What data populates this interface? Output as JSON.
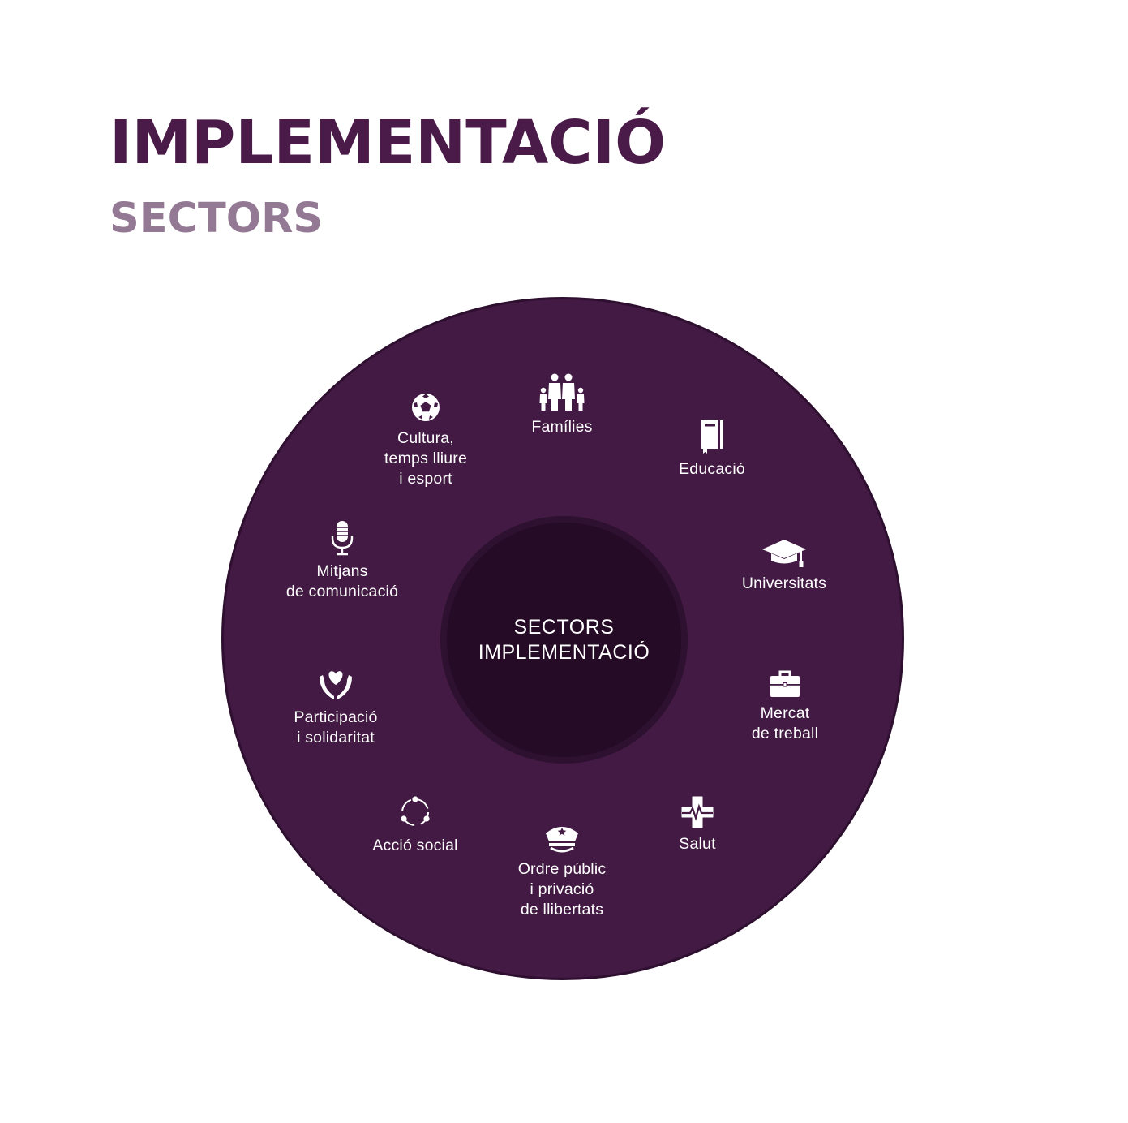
{
  "header": {
    "title": "IMPLEMENTACIÓ",
    "subtitle": "SECTORS"
  },
  "diagram": {
    "center": {
      "line1": "SECTORS",
      "line2": "IMPLEMENTACIÓ"
    },
    "sectors": [
      {
        "label": "Famílies",
        "icon": "family-icon"
      },
      {
        "label": "Educació",
        "icon": "notebook-icon"
      },
      {
        "label": "Universitats",
        "icon": "graduation-cap-icon"
      },
      {
        "label": "Mercat\nde treball",
        "icon": "briefcase-icon"
      },
      {
        "label": "Salut",
        "icon": "health-cross-icon"
      },
      {
        "label": "Ordre públic\ni privació\nde llibertats",
        "icon": "police-cap-icon"
      },
      {
        "label": "Acció social",
        "icon": "cycle-arrows-icon"
      },
      {
        "label": "Participació\ni solidaritat",
        "icon": "hands-heart-icon"
      },
      {
        "label": "Mitjans\nde comunicació",
        "icon": "microphone-icon"
      },
      {
        "label": "Cultura,\ntemps lliure\ni esport",
        "icon": "soccer-ball-icon"
      }
    ],
    "colors": {
      "ring": "#421a43",
      "hub": "#250b26",
      "title": "#4a1a48",
      "subtitle": "#937994"
    }
  }
}
